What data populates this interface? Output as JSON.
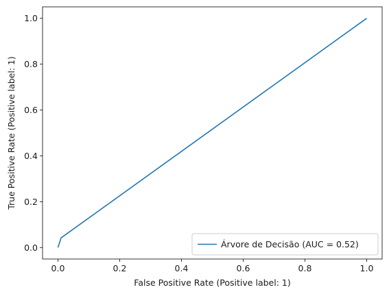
{
  "chart_data": {
    "type": "line",
    "xlabel": "False Positive Rate (Positive label: 1)",
    "ylabel": "True Positive Rate (Positive label: 1)",
    "xlim": [
      -0.05,
      1.05
    ],
    "ylim": [
      -0.05,
      1.05
    ],
    "x_ticks": [
      0.0,
      0.2,
      0.4,
      0.6,
      0.8,
      1.0
    ],
    "y_ticks": [
      0.0,
      0.2,
      0.4,
      0.6,
      0.8,
      1.0
    ],
    "x_tick_labels": [
      "0.0",
      "0.2",
      "0.4",
      "0.6",
      "0.8",
      "1.0"
    ],
    "y_tick_labels": [
      "0.0",
      "0.2",
      "0.4",
      "0.6",
      "0.8",
      "1.0"
    ],
    "grid": false,
    "legend_position": "lower-right",
    "series": [
      {
        "name": "Árvore de Decisão (AUC = 0.52)",
        "color": "#1f77b4",
        "x": [
          0.0,
          0.01,
          1.0
        ],
        "y": [
          0.0,
          0.042,
          1.0
        ]
      }
    ]
  }
}
